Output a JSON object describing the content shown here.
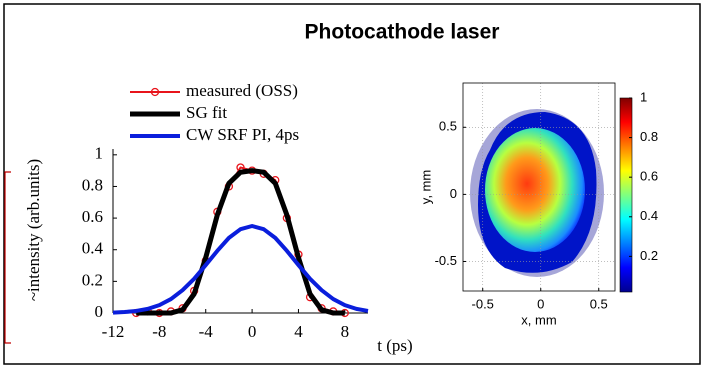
{
  "title": "Photocathode laser",
  "chart_data": [
    {
      "type": "line",
      "xlabel": "t (ps)",
      "ylabel": "~intensity (arb.units)",
      "x": [
        -12,
        -11,
        -10,
        -9,
        -8,
        -7,
        -6,
        -5,
        -4,
        -3,
        -2,
        -1,
        0,
        1,
        2,
        3,
        4,
        5,
        6,
        7,
        8,
        9,
        10
      ],
      "xlim": [
        -12,
        10
      ],
      "xticks": [
        -12,
        -8,
        -4,
        0,
        4,
        8
      ],
      "ylim": [
        0,
        1.1
      ],
      "yticks": [
        0,
        0.2,
        0.4,
        0.6,
        0.8,
        1
      ],
      "legend": "upper left",
      "series": [
        {
          "name": "measured (OSS)",
          "color": "#e8141b",
          "marker": "circle",
          "values": [
            null,
            null,
            0,
            0.01,
            0,
            0.01,
            0.03,
            0.14,
            0.33,
            0.64,
            0.8,
            0.92,
            0.9,
            0.88,
            0.84,
            0.6,
            0.37,
            0.1,
            0.03,
            0.01,
            0,
            null,
            null
          ]
        },
        {
          "name": "SG fit",
          "color": "#000000",
          "values": [
            null,
            null,
            0,
            0,
            0,
            0,
            0.02,
            0.12,
            0.35,
            0.62,
            0.82,
            0.89,
            0.9,
            0.89,
            0.82,
            0.62,
            0.35,
            0.12,
            0.02,
            0,
            0,
            null,
            null
          ]
        },
        {
          "name": "CW SRF PI, 4ps",
          "color": "#0a1edc",
          "values": [
            0.0025,
            0.0061,
            0.013,
            0.026,
            0.05,
            0.088,
            0.144,
            0.216,
            0.303,
            0.393,
            0.475,
            0.53,
            0.55,
            0.53,
            0.475,
            0.393,
            0.303,
            0.216,
            0.144,
            0.088,
            0.05,
            0.026,
            0.013
          ]
        }
      ]
    },
    {
      "type": "heatmap",
      "xlabel": "x, mm",
      "ylabel": "y, mm",
      "xlim": [
        -0.67,
        0.64
      ],
      "xticks": [
        -0.5,
        0,
        0.5
      ],
      "ylim": [
        -0.72,
        0.83
      ],
      "yticks": [
        -0.5,
        0,
        0.5
      ],
      "grid": true,
      "colormap": "jet",
      "clim": [
        0.02,
        1
      ],
      "cticks": [
        0.2,
        0.4,
        0.6,
        0.8,
        1
      ]
    }
  ]
}
